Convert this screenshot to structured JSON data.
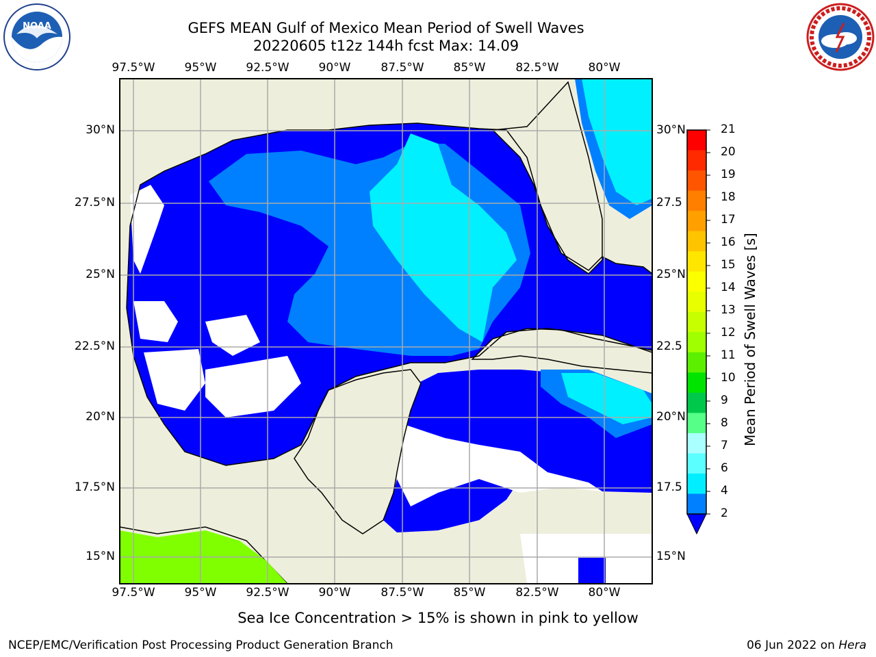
{
  "header": {
    "title_line1": "GEFS MEAN Gulf of Mexico Mean Period of Swell Waves",
    "title_line2": "20220605 t12z 144h fcst   Max: 14.09"
  },
  "logos": {
    "left": "noaa-logo",
    "right": "nws-logo"
  },
  "axes": {
    "lon_labels": [
      "97.5°W",
      "95°W",
      "92.5°W",
      "90°W",
      "87.5°W",
      "85°W",
      "82.5°W",
      "80°W"
    ],
    "lat_labels_left": [
      "30°N",
      "27.5°N",
      "25°N",
      "22.5°N",
      "20°N",
      "17.5°N",
      "15°N"
    ],
    "lat_labels_right": [
      "30°N",
      "27.5",
      "25°N",
      "22.5",
      "20°N",
      "17.5",
      "15°N"
    ]
  },
  "colorbar": {
    "label": "Mean Period of Swell Waves [s]",
    "ticks": [
      "21",
      "20",
      "19",
      "18",
      "17",
      "16",
      "15",
      "14",
      "13",
      "12",
      "11",
      "10",
      "9",
      "8",
      "7",
      "6",
      "4",
      "2"
    ],
    "colors": [
      "#ff0000",
      "#ff2a00",
      "#ff5500",
      "#ff7f00",
      "#ffa000",
      "#ffc400",
      "#ffe600",
      "#fbff00",
      "#e8ff00",
      "#c8ff00",
      "#a0ff00",
      "#5cf000",
      "#00e400",
      "#00c84a",
      "#55ff88",
      "#aaffff",
      "#5cffff",
      "#00eeff",
      "#0080ff"
    ],
    "underflow_color": "#0000ff"
  },
  "map": {
    "land_color": "#eeeedc",
    "ocean_low_color": "#0000ff",
    "ocean_mid_color": "#0080ff",
    "ocean_high_color": "#00f0ff",
    "ice_color": "#80ff00"
  },
  "footer": {
    "note": "Sea Ice Concentration > 15% is shown in pink to yellow",
    "left": "NCEP/EMC/Verification Post Processing Product Generation Branch",
    "right_date": "06 Jun 2022 on",
    "right_host": "Hera"
  }
}
